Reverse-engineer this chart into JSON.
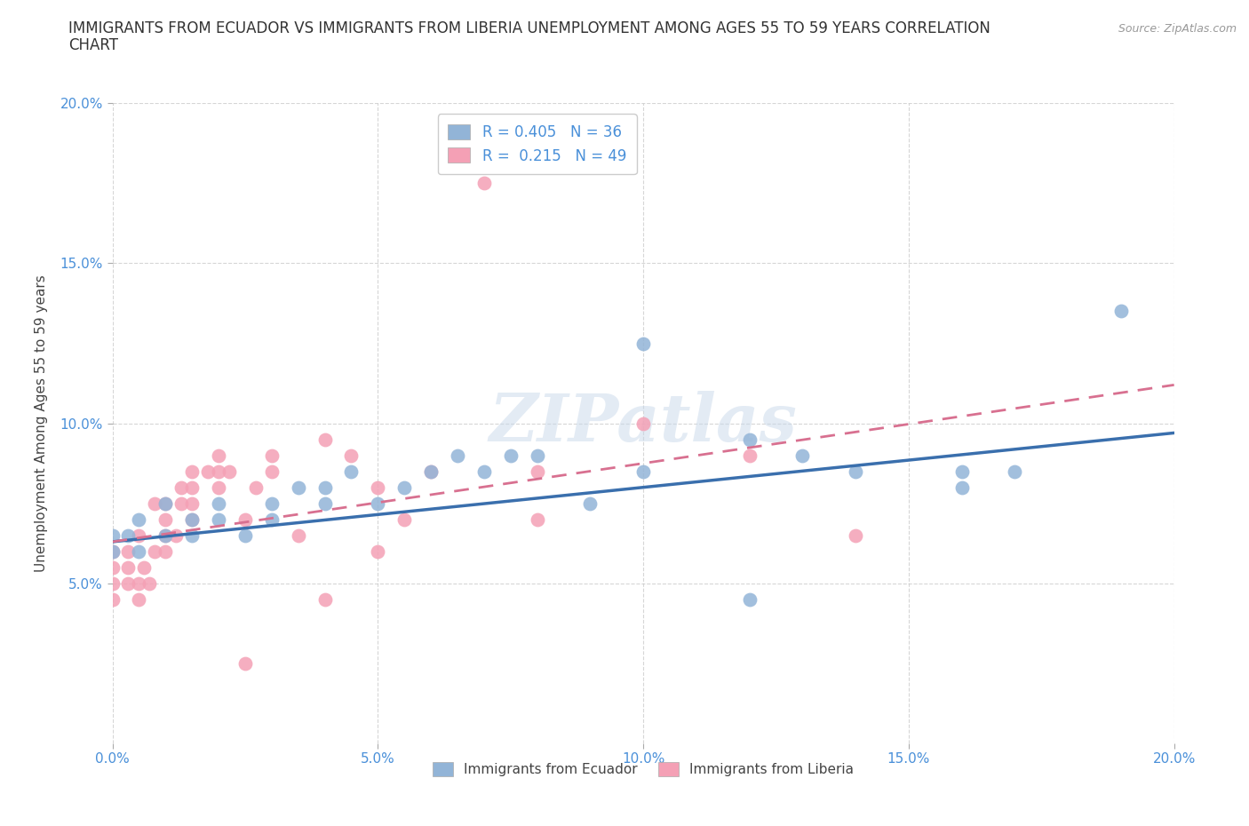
{
  "title": "IMMIGRANTS FROM ECUADOR VS IMMIGRANTS FROM LIBERIA UNEMPLOYMENT AMONG AGES 55 TO 59 YEARS CORRELATION\nCHART",
  "source": "Source: ZipAtlas.com",
  "ylabel": "Unemployment Among Ages 55 to 59 years",
  "xlim": [
    0.0,
    0.2
  ],
  "ylim": [
    0.0,
    0.2
  ],
  "xticks": [
    0.0,
    0.05,
    0.1,
    0.15,
    0.2
  ],
  "yticks": [
    0.05,
    0.1,
    0.15,
    0.2
  ],
  "xticklabels": [
    "0.0%",
    "5.0%",
    "10.0%",
    "15.0%",
    "20.0%"
  ],
  "yticklabels": [
    "5.0%",
    "10.0%",
    "15.0%",
    "20.0%"
  ],
  "ecuador_R": 0.405,
  "ecuador_N": 36,
  "liberia_R": 0.215,
  "liberia_N": 49,
  "ecuador_color": "#92b4d7",
  "liberia_color": "#f4a0b5",
  "ecuador_line_color": "#3a6fad",
  "liberia_line_color": "#d87090",
  "watermark": "ZIPatlas",
  "legend_ecuador": "Immigrants from Ecuador",
  "legend_liberia": "Immigrants from Liberia",
  "ecuador_x": [
    0.0,
    0.0,
    0.003,
    0.005,
    0.005,
    0.01,
    0.01,
    0.015,
    0.015,
    0.02,
    0.02,
    0.025,
    0.03,
    0.03,
    0.035,
    0.04,
    0.04,
    0.045,
    0.05,
    0.055,
    0.06,
    0.065,
    0.07,
    0.075,
    0.08,
    0.09,
    0.1,
    0.1,
    0.12,
    0.12,
    0.13,
    0.14,
    0.16,
    0.16,
    0.17,
    0.19
  ],
  "ecuador_y": [
    0.06,
    0.065,
    0.065,
    0.06,
    0.07,
    0.065,
    0.075,
    0.065,
    0.07,
    0.07,
    0.075,
    0.065,
    0.07,
    0.075,
    0.08,
    0.075,
    0.08,
    0.085,
    0.075,
    0.08,
    0.085,
    0.09,
    0.085,
    0.09,
    0.09,
    0.075,
    0.085,
    0.125,
    0.095,
    0.045,
    0.09,
    0.085,
    0.085,
    0.08,
    0.085,
    0.135
  ],
  "liberia_x": [
    0.0,
    0.0,
    0.0,
    0.0,
    0.003,
    0.003,
    0.003,
    0.005,
    0.005,
    0.005,
    0.006,
    0.007,
    0.008,
    0.008,
    0.01,
    0.01,
    0.01,
    0.01,
    0.012,
    0.013,
    0.013,
    0.015,
    0.015,
    0.015,
    0.015,
    0.018,
    0.02,
    0.02,
    0.02,
    0.022,
    0.025,
    0.025,
    0.027,
    0.03,
    0.03,
    0.035,
    0.04,
    0.04,
    0.045,
    0.05,
    0.05,
    0.055,
    0.06,
    0.07,
    0.08,
    0.08,
    0.1,
    0.12,
    0.14
  ],
  "liberia_y": [
    0.045,
    0.05,
    0.055,
    0.06,
    0.05,
    0.055,
    0.06,
    0.045,
    0.05,
    0.065,
    0.055,
    0.05,
    0.06,
    0.075,
    0.06,
    0.065,
    0.07,
    0.075,
    0.065,
    0.075,
    0.08,
    0.07,
    0.075,
    0.08,
    0.085,
    0.085,
    0.08,
    0.085,
    0.09,
    0.085,
    0.025,
    0.07,
    0.08,
    0.085,
    0.09,
    0.065,
    0.045,
    0.095,
    0.09,
    0.06,
    0.08,
    0.07,
    0.085,
    0.175,
    0.085,
    0.07,
    0.1,
    0.09,
    0.065
  ],
  "ecuador_line_x0": 0.0,
  "ecuador_line_x1": 0.2,
  "ecuador_line_y0": 0.063,
  "ecuador_line_y1": 0.097,
  "liberia_line_x0": 0.0,
  "liberia_line_x1": 0.2,
  "liberia_line_y0": 0.063,
  "liberia_line_y1": 0.112
}
